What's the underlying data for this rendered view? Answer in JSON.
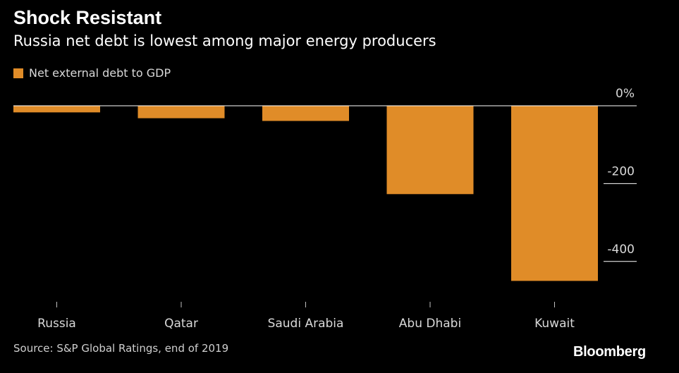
{
  "header": {
    "title": "Shock Resistant",
    "subtitle": "Russia net debt is lowest among major energy producers"
  },
  "footer": {
    "source": "Source: S&P Global Ratings, end of 2019",
    "brand": "Bloomberg"
  },
  "colors": {
    "bar": "#e08c28",
    "background": "#000000",
    "axis_text": "#d9d9d9"
  },
  "chart_data": {
    "type": "bar",
    "categories": [
      "Russia",
      "Qatar",
      "Saudi Arabia",
      "Abu Dhabi",
      "Kuwait"
    ],
    "series": [
      {
        "name": "Net external debt to GDP",
        "values": [
          -17,
          -32,
          -39,
          -227,
          -450
        ]
      }
    ],
    "ylim": [
      -500,
      0
    ],
    "ticks": [
      0,
      -200,
      -400
    ],
    "tick_labels": [
      "0%",
      "-200",
      "-400"
    ],
    "legend_position": "top-left",
    "grid": false
  }
}
